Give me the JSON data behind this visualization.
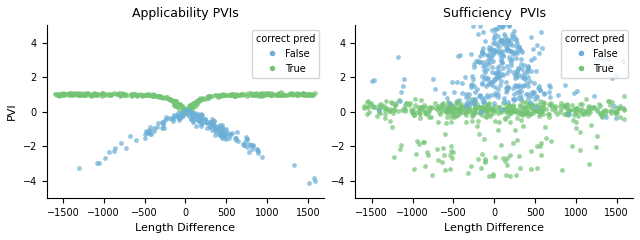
{
  "title_left": "Applicability PVIs",
  "title_right": "Sufficiency  PVIs",
  "xlabel": "Length Difference",
  "ylabel": "PVI",
  "legend_title": "correct pred",
  "legend_false": "False",
  "legend_true": "True",
  "color_false": "#6baed6",
  "color_true": "#74c476",
  "xlim": [
    -1700,
    1700
  ],
  "ylim_left": [
    -5,
    5
  ],
  "ylim_right": [
    -5,
    5
  ],
  "xticks": [
    -1500,
    -1000,
    -500,
    0,
    500,
    1000,
    1500
  ],
  "marker_size": 12,
  "alpha": 0.7,
  "seed": 42
}
